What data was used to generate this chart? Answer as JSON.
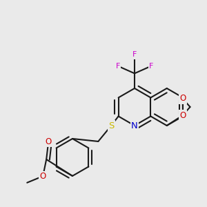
{
  "bg_color": "#eaeaea",
  "bond_color": "#1a1a1a",
  "bond_lw": 1.5,
  "dbo": 0.008,
  "figsize": [
    3.0,
    3.0
  ],
  "dpi": 100,
  "atom_colors": {
    "N": "#0000cc",
    "S": "#ccbb00",
    "F": "#cc00cc",
    "O": "#cc0000",
    "C": "#1a1a1a"
  }
}
